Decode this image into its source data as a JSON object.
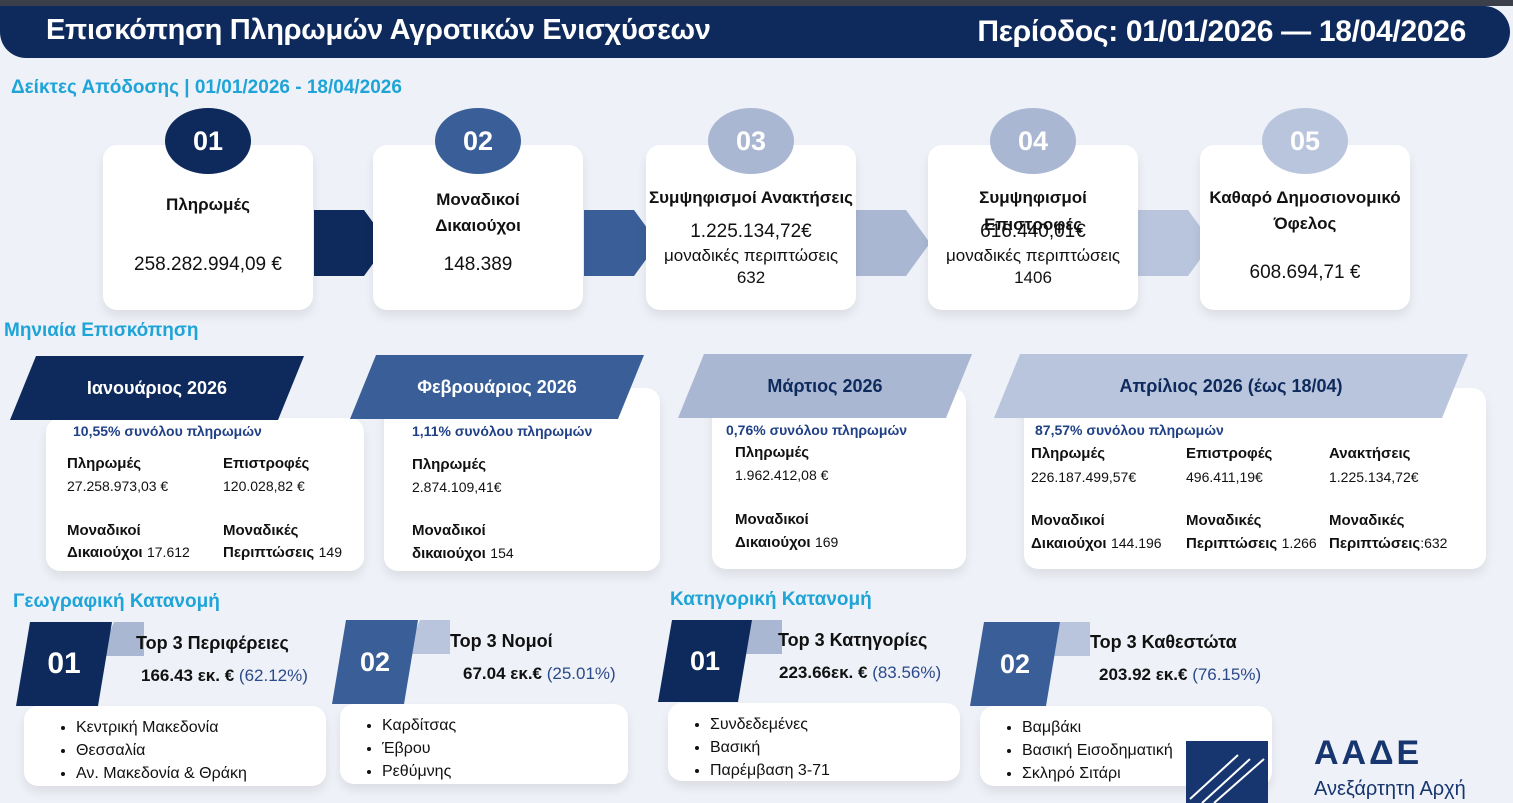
{
  "header": {
    "title": "Επισκόπηση Πληρωμών Αγροτικών Ενισχύσεων",
    "period": "Περίοδος: 01/01/2026 — 18/04/2026"
  },
  "kpi_section": {
    "title": "Δείκτες Απόδοσης | 01/01/2026 - 18/04/2026",
    "cards": [
      {
        "num": "01",
        "label": "Πληρωμές",
        "value": "258.282.994,09 €",
        "color": "#0e2a5c"
      },
      {
        "num": "02",
        "label_l1": "Μοναδικοί",
        "label_l2": "Δικαιούχοι",
        "value": "148.389",
        "color": "#3a5f98"
      },
      {
        "num": "03",
        "label": "Συμψηφισμοί Ανακτήσεις",
        "value": "1.225.134,72€",
        "sub_l1": "μοναδικές περιπτώσεις",
        "sub_l2": "632",
        "color": "#a9b7d3"
      },
      {
        "num": "04",
        "label": "Συμψηφισμοί Επιστροφές",
        "value": "616.440,01€",
        "sub_l1": "μοναδικές περιπτώσεις",
        "sub_l2": "1406",
        "color": "#a9b7d3"
      },
      {
        "num": "05",
        "label_l1": "Καθαρό Δημοσιονομικό",
        "label_l2": "Όφελος",
        "value": "608.694,71 €",
        "color": "#b9c5dc"
      }
    ]
  },
  "monthly_section": {
    "title": "Μηνιαία Επισκόπηση",
    "months": [
      {
        "name": "Ιανουάριος 2026",
        "pct": "10,55% συνόλου πληρωμών",
        "payments_label": "Πληρωμές",
        "payments_value": "27.258.973,03 €",
        "refunds_label": "Επιστροφές",
        "refunds_value": "120.028,82 €",
        "benef_l1": "Μοναδικοί",
        "benef_l2": "Δικαιούχοι",
        "benef_value": "17.612",
        "cases_l1": "Μοναδικές",
        "cases_l2": "Περιπτώσεις",
        "cases_value": "149"
      },
      {
        "name": "Φεβρουάριος 2026",
        "pct": "1,11% συνόλου πληρωμών",
        "payments_label": "Πληρωμές",
        "payments_value": "2.874.109,41€",
        "benef_l1": "Μοναδικοί",
        "benef_l2": "δικαιούχοι",
        "benef_value": "154"
      },
      {
        "name": "Μάρτιος 2026",
        "pct": "0,76% συνόλου πληρωμών",
        "payments_label": "Πληρωμές",
        "payments_value": "1.962.412,08 €",
        "benef_l1": "Μοναδικοί",
        "benef_l2": "Δικαιούχοι",
        "benef_value": "169"
      },
      {
        "name": "Απρίλιος 2026 (έως 18/04)",
        "pct": "87,57% συνόλου πληρωμών",
        "payments_label": "Πληρωμές",
        "payments_value": "226.187.499,57€",
        "refunds_label": "Επιστροφές",
        "refunds_value": "496.411,19€",
        "recov_label": "Ανακτήσεις",
        "recov_value": "1.225.134,72€",
        "benef_l1": "Μοναδικοί",
        "benef_l2": "Δικαιούχοι",
        "benef_value": "144.196",
        "cases_l1": "Μοναδικές",
        "cases_l2": "Περιπτώσεις",
        "cases_value": "1.266",
        "cases2_l1": "Μοναδικές",
        "cases2_l2": "Περιπτώσεις",
        "cases2_value": ":632"
      }
    ]
  },
  "geo_section": {
    "title": "Γεωγραφική Κατανομή",
    "blocks": [
      {
        "num": "01",
        "title": "Top 3 Περιφέρειες",
        "value": "166.43 εκ. €",
        "pct": "(62.12%)",
        "items": [
          "Κεντρική Μακεδονία",
          "Θεσσαλία",
          "Αν. Μακεδονία & Θράκη"
        ]
      },
      {
        "num": "02",
        "title": "Top 3 Νομοί",
        "value": "67.04 εκ.€",
        "pct": "(25.01%)",
        "items": [
          "Καρδίτσας",
          "Έβρου",
          "Ρεθύμνης"
        ]
      }
    ]
  },
  "cat_section": {
    "title": "Κατηγορική Κατανομή",
    "blocks": [
      {
        "num": "01",
        "title": "Top 3 Κατηγορίες",
        "value": "223.66εκ. €",
        "pct": "(83.56%)",
        "items": [
          "Συνδεδεμένες",
          "Βασική",
          "Παρέμβαση 3-71"
        ]
      },
      {
        "num": "02",
        "title": "Top 3 Καθεστώτα",
        "value": "203.92 εκ.€",
        "pct": "(76.15%)",
        "items": [
          "Βαμβάκι",
          "Βασική Εισοδηματική",
          "Σκληρό Σιτάρι"
        ]
      }
    ]
  },
  "logo": {
    "name": "ΑΑΔΕ",
    "subtitle": "Ανεξάρτητη Αρχή"
  }
}
